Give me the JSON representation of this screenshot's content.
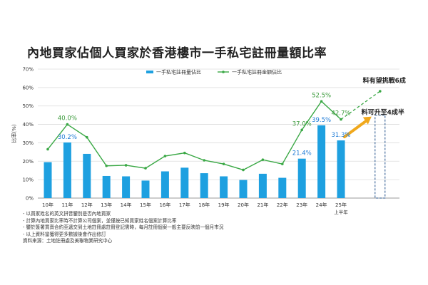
{
  "title": "內地買家佔個人買家於香港樓市一手私宅註冊量額比率",
  "notes": [
    "- 以買家姓名的英文拼音鑒別是否內地買家",
    "- 計算內地買家比率時不計算公司個案，並僅按已知買家姓名個案計算比率",
    "- 鑒於簽署買賣合約至遞交到土地註冊處註冊登記需時，每月註冊個案一般主要反映前一個月市況",
    "- 以上資料當獲得更多數據後會作出修訂",
    "資料來源：土地註冊處及美聯物業研究中心"
  ],
  "chart_data": {
    "type": "bar",
    "categories": [
      "10年",
      "11年",
      "12年",
      "13年",
      "14年",
      "15年",
      "16年",
      "17年",
      "18年",
      "19年",
      "20年",
      "21年",
      "22年",
      "23年",
      "24年",
      "25年"
    ],
    "category_note": "上半年",
    "ylabel": "比率(%)",
    "ylim": [
      0,
      70
    ],
    "yticks": [
      0,
      10,
      20,
      30,
      40,
      50,
      60,
      70
    ],
    "ytick_labels": [
      "0%",
      "10%",
      "20%",
      "30%",
      "40%",
      "50%",
      "60%",
      "70%"
    ],
    "grid": true,
    "legend_position": "top",
    "series": [
      {
        "name": "一手私宅註冊量佔比",
        "type": "bar",
        "color": "#1ea0e0",
        "values": [
          19.5,
          30.2,
          24,
          12,
          11.8,
          9.5,
          14.5,
          16.5,
          13.5,
          11.8,
          9.8,
          13.2,
          11,
          21.4,
          39.5,
          31.3
        ],
        "labels": {
          "1": "30.2%",
          "13": "21.4%",
          "14": "39.5%",
          "15": "31.3%"
        }
      },
      {
        "name": "一手私宅註冊金額佔比",
        "type": "line",
        "color": "#3aa845",
        "values": [
          26.5,
          40.0,
          33,
          17.5,
          17.8,
          16.2,
          22.8,
          24.5,
          20.5,
          18.5,
          15.3,
          20.8,
          18.5,
          37.0,
          52.5,
          42.7
        ],
        "labels": {
          "1": "40.0%",
          "13": "37.0%",
          "14": "52.5%",
          "15": "42.7%"
        }
      }
    ],
    "forecast": {
      "line_value": 58,
      "line_label": "料有望挑戰6成",
      "bar_value": 45,
      "bar_label": "料可升至4成半",
      "arrow_color": "#f0a81c"
    },
    "label_colors": {
      "bar": "#1e7bd6",
      "line": "#3a9a3a"
    }
  }
}
